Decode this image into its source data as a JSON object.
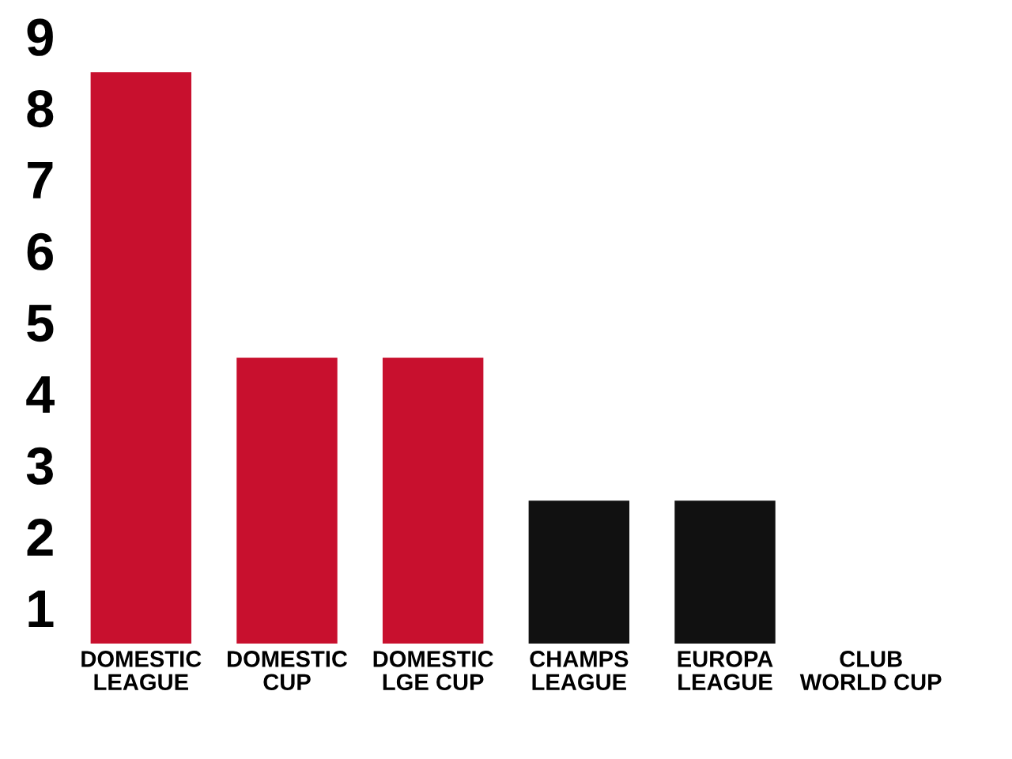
{
  "chart_data": {
    "type": "bar",
    "categories": [
      "DOMESTIC\nLEAGUE",
      "DOMESTIC\nCUP",
      "DOMESTIC\nLGE CUP",
      "CHAMPS\nLEAGUE",
      "EUROPA\nLEAGUE",
      "CLUB\nWORLD CUP"
    ],
    "values": [
      8,
      4,
      4,
      2,
      2,
      0
    ],
    "colors": [
      "#c8102e",
      "#c8102e",
      "#c8102e",
      "#111111",
      "#111111",
      "#c8102e"
    ],
    "ylim": [
      0,
      8.5
    ],
    "yticks": [
      {
        "value": 0.5,
        "label": "1"
      },
      {
        "value": 1.5,
        "label": "2"
      },
      {
        "value": 2.5,
        "label": "3"
      },
      {
        "value": 3.5,
        "label": "4"
      },
      {
        "value": 4.5,
        "label": "5"
      },
      {
        "value": 5.5,
        "label": "6"
      },
      {
        "value": 6.5,
        "label": "7"
      },
      {
        "value": 7.5,
        "label": "8"
      },
      {
        "value": 8.5,
        "label": "9"
      }
    ],
    "grid": false
  }
}
